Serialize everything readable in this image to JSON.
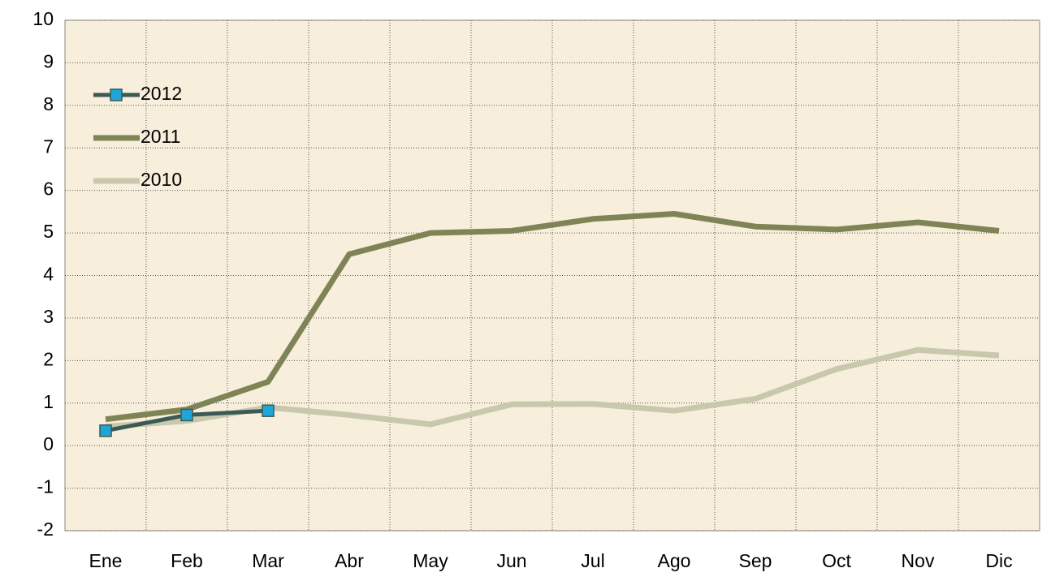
{
  "chart_data": {
    "type": "line",
    "categories": [
      "Ene",
      "Feb",
      "Mar",
      "Abr",
      "May",
      "Jun",
      "Jul",
      "Ago",
      "Sep",
      "Oct",
      "Nov",
      "Dic"
    ],
    "series": [
      {
        "name": "2012",
        "color": "#3b5a55",
        "marker": "square",
        "marker_color": "#1fa5d8",
        "values": [
          0.35,
          0.72,
          0.82,
          null,
          null,
          null,
          null,
          null,
          null,
          null,
          null,
          null
        ]
      },
      {
        "name": "2011",
        "color": "#7f8456",
        "values": [
          0.62,
          0.85,
          1.5,
          4.5,
          5.0,
          5.05,
          5.33,
          5.45,
          5.15,
          5.08,
          5.25,
          5.05
        ]
      },
      {
        "name": "2010",
        "color": "#c8c8ad",
        "values": [
          0.45,
          0.58,
          0.9,
          0.72,
          0.5,
          0.97,
          0.98,
          0.82,
          1.1,
          1.8,
          2.25,
          2.12
        ]
      }
    ],
    "ylim": [
      -2,
      10
    ],
    "yticks": [
      -2,
      -1,
      0,
      1,
      2,
      3,
      4,
      5,
      6,
      7,
      8,
      9,
      10
    ],
    "grid": true,
    "legend": "upper left",
    "plot_background": "#f7eedc"
  }
}
